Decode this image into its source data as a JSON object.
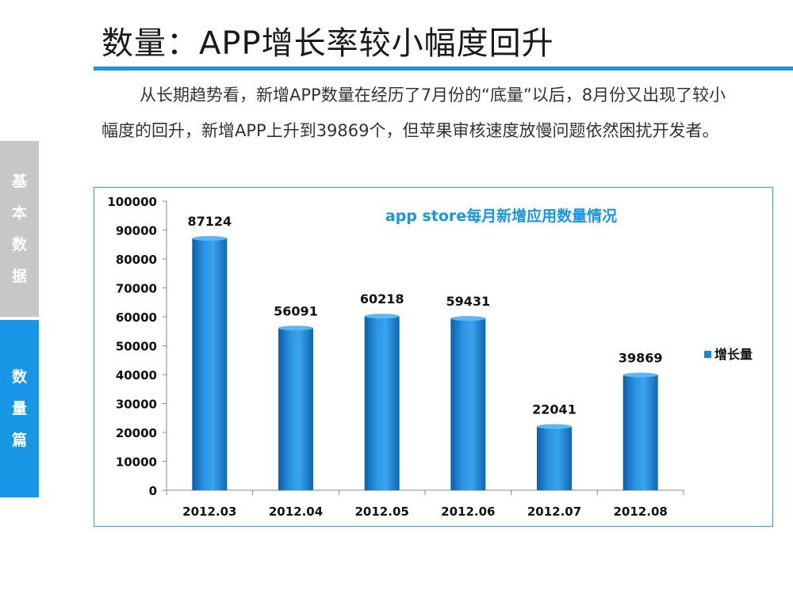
{
  "header": {
    "title": "数量：APP增长率较小幅度回升"
  },
  "body": {
    "paragraph": "从长期趋势看，新增APP数量在经历了7月份的“底量”以后，8月份又出现了较小幅度的回升，新增APP上升到39869个，但苹果审核速度放慢问题依然困扰开发者。"
  },
  "sidebar": {
    "tabs": [
      {
        "label": "基本数据",
        "chars": [
          "基",
          "本",
          "数",
          "据"
        ],
        "active": false,
        "color": "#c7c7c7"
      },
      {
        "label": "数量篇",
        "chars": [
          "数",
          "量",
          "篇"
        ],
        "active": true,
        "color": "#1796e6"
      }
    ]
  },
  "chart_data": {
    "type": "bar",
    "title": "app store每月新增应用数量情况",
    "categories": [
      "2012.03",
      "2012.04",
      "2012.05",
      "2012.06",
      "2012.07",
      "2012.08"
    ],
    "series": [
      {
        "name": "增长量",
        "values": [
          87124,
          56091,
          60218,
          59431,
          22041,
          39869
        ],
        "color": "#1b86d6"
      }
    ],
    "ylim": [
      0,
      100000
    ],
    "yticks": [
      0,
      10000,
      20000,
      30000,
      40000,
      50000,
      60000,
      70000,
      80000,
      90000,
      100000
    ],
    "data_labels": true,
    "legend_position": "right",
    "grid": false,
    "title_color": "#1796e6"
  }
}
